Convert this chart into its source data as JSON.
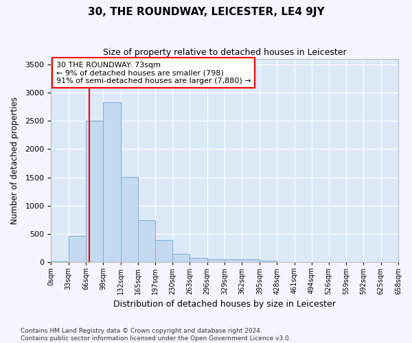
{
  "title": "30, THE ROUNDWAY, LEICESTER, LE4 9JY",
  "subtitle": "Size of property relative to detached houses in Leicester",
  "xlabel": "Distribution of detached houses by size in Leicester",
  "ylabel": "Number of detached properties",
  "bar_color": "#c5d9f0",
  "bar_edge_color": "#7bafd4",
  "background_color": "#dce9f7",
  "grid_color": "#ffffff",
  "fig_bg_color": "#f5f5ff",
  "red_line_x": 73,
  "annotation_line1": "30 THE ROUNDWAY: 73sqm",
  "annotation_line2": "← 9% of detached houses are smaller (798)",
  "annotation_line3": "91% of semi-detached houses are larger (7,880) →",
  "bin_edges": [
    0,
    33,
    66,
    99,
    132,
    165,
    197,
    230,
    263,
    296,
    329,
    362,
    395,
    428,
    461,
    494,
    526,
    559,
    592,
    625,
    658
  ],
  "bin_labels": [
    "0sqm",
    "33sqm",
    "66sqm",
    "99sqm",
    "132sqm",
    "165sqm",
    "197sqm",
    "230sqm",
    "263sqm",
    "296sqm",
    "329sqm",
    "362sqm",
    "395sqm",
    "428sqm",
    "461sqm",
    "494sqm",
    "526sqm",
    "559sqm",
    "592sqm",
    "625sqm",
    "658sqm"
  ],
  "bar_heights": [
    20,
    470,
    2500,
    2830,
    1510,
    750,
    390,
    150,
    80,
    55,
    55,
    50,
    30,
    10,
    5,
    2,
    2,
    1,
    1,
    1
  ],
  "ylim": [
    0,
    3600
  ],
  "yticks": [
    0,
    500,
    1000,
    1500,
    2000,
    2500,
    3000,
    3500
  ],
  "footer_line1": "Contains HM Land Registry data © Crown copyright and database right 2024.",
  "footer_line2": "Contains public sector information licensed under the Open Government Licence v3.0."
}
